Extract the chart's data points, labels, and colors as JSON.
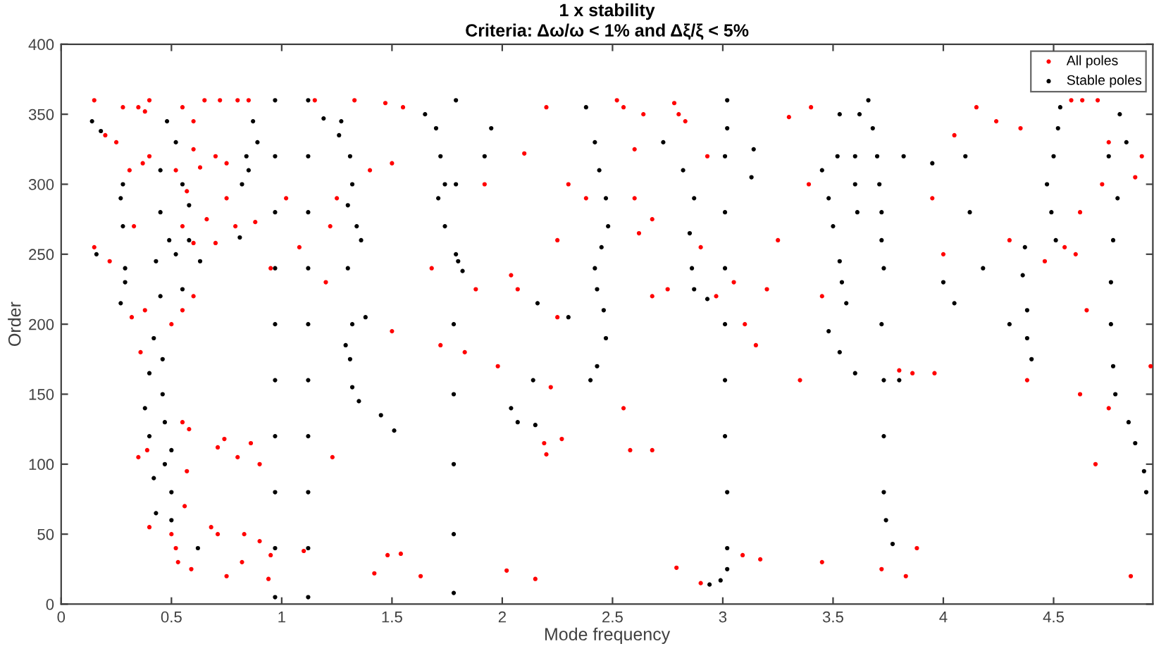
{
  "chart_data": {
    "type": "scatter",
    "title": "1 x stability",
    "subtitle": "Criteria: Δω/ω < 1% and Δξ/ξ < 5%",
    "xlabel": "Mode frequency",
    "ylabel": "Order",
    "xlim": [
      0,
      4.95
    ],
    "ylim": [
      0,
      400
    ],
    "xticks": [
      0,
      0.5,
      1,
      1.5,
      2,
      2.5,
      3,
      3.5,
      4,
      4.5
    ],
    "yticks": [
      0,
      50,
      100,
      150,
      200,
      250,
      300,
      350,
      400
    ],
    "grid": false,
    "legend": "top right",
    "marker": "circle",
    "series": [
      {
        "name": "All poles",
        "color": "#ff0000",
        "x": [
          0.15,
          0.2,
          0.25,
          0.28,
          0.35,
          0.38,
          0.4,
          0.55,
          0.6,
          0.65,
          0.72,
          0.8,
          0.85,
          0.6,
          0.7,
          0.63,
          0.75,
          0.37,
          0.31,
          0.4,
          0.52,
          0.57,
          0.66,
          0.75,
          0.79,
          0.88,
          0.7,
          0.6,
          0.55,
          0.33,
          0.22,
          0.15,
          0.32,
          0.38,
          0.55,
          0.6,
          0.5,
          0.36,
          0.39,
          0.35,
          0.55,
          0.58,
          0.57,
          0.56,
          0.4,
          0.5,
          0.52,
          0.53,
          0.59,
          0.68,
          0.71,
          0.75,
          0.82,
          0.86,
          0.8,
          0.74,
          0.71,
          0.9,
          0.83,
          0.9,
          0.95,
          0.94,
          0.95,
          1.02,
          1.1,
          1.08,
          1.23,
          1.42,
          1.48,
          1.54,
          1.63,
          1.5,
          1.2,
          1.22,
          1.25,
          1.4,
          1.5,
          1.55,
          1.33,
          1.47,
          1.15,
          1.68,
          1.72,
          1.83,
          1.88,
          1.92,
          1.98,
          2.04,
          2.07,
          2.02,
          2.15,
          2.25,
          2.3,
          2.38,
          2.25,
          2.22,
          2.27,
          2.19,
          2.2,
          2.1,
          2.2,
          2.6,
          2.52,
          2.55,
          2.6,
          2.68,
          2.62,
          2.64,
          2.78,
          2.8,
          2.83,
          2.75,
          2.68,
          2.55,
          2.58,
          2.68,
          2.79,
          2.9,
          2.93,
          2.9,
          2.97,
          3.05,
          3.1,
          3.09,
          3.17,
          3.15,
          3.2,
          3.25,
          3.3,
          3.4,
          3.39,
          3.35,
          3.45,
          3.45,
          3.72,
          3.83,
          3.88,
          3.8,
          3.86,
          3.96,
          3.95,
          4.0,
          4.05,
          4.15,
          4.24,
          4.35,
          4.3,
          4.38,
          4.46,
          4.55,
          4.62,
          4.7,
          4.72,
          4.6,
          4.75,
          4.65,
          4.62,
          4.75,
          4.69,
          4.85,
          4.9,
          4.87,
          4.94,
          4.58,
          4.63
        ],
        "values": [
          360,
          335,
          330,
          355,
          355,
          352,
          360,
          355,
          345,
          360,
          360,
          360,
          360,
          325,
          320,
          312,
          315,
          315,
          310,
          320,
          310,
          295,
          275,
          290,
          270,
          273,
          258,
          258,
          270,
          270,
          245,
          255,
          205,
          210,
          210,
          220,
          200,
          180,
          110,
          105,
          130,
          125,
          95,
          70,
          55,
          50,
          40,
          30,
          25,
          55,
          50,
          20,
          30,
          115,
          105,
          118,
          112,
          100,
          50,
          45,
          35,
          18,
          240,
          290,
          38,
          255,
          105,
          22,
          35,
          36,
          20,
          195,
          230,
          270,
          290,
          310,
          315,
          355,
          360,
          358,
          360,
          240,
          185,
          180,
          225,
          300,
          170,
          235,
          225,
          24,
          18,
          260,
          300,
          290,
          205,
          155,
          118,
          115,
          107,
          322,
          355,
          325,
          360,
          355,
          290,
          275,
          265,
          350,
          358,
          350,
          345,
          225,
          220,
          140,
          110,
          110,
          26,
          15,
          320,
          255,
          220,
          230,
          200,
          35,
          32,
          185,
          225,
          260,
          348,
          355,
          300,
          160,
          220,
          30,
          25,
          20,
          40,
          167,
          165,
          165,
          290,
          250,
          335,
          355,
          345,
          340,
          260,
          160,
          245,
          255,
          280,
          360,
          300,
          250,
          330,
          210,
          150,
          140,
          100,
          20,
          320,
          305,
          170,
          360,
          360
        ]
      },
      {
        "name": "Stable poles",
        "color": "#000000",
        "x": [
          0.97,
          0.97,
          0.97,
          0.97,
          0.97,
          0.97,
          0.97,
          0.97,
          0.97,
          0.97,
          1.12,
          1.12,
          1.12,
          1.12,
          1.12,
          1.12,
          1.12,
          1.12,
          1.12,
          1.12,
          1.78,
          1.78,
          1.78,
          1.78,
          1.78,
          1.79,
          1.79,
          1.79,
          2.94,
          2.99,
          3.02,
          3.02,
          3.02,
          3.01,
          3.01,
          3.01,
          3.01,
          3.01,
          3.01,
          3.02,
          3.02,
          3.77,
          3.74,
          3.73,
          3.73,
          3.73,
          3.72,
          3.73,
          3.72,
          3.72,
          3.71,
          3.7,
          3.68,
          3.66,
          3.62,
          3.6,
          3.6,
          3.61,
          0.43,
          0.42,
          0.4,
          0.38,
          0.4,
          0.42,
          0.45,
          0.43,
          0.45,
          0.45,
          0.48,
          0.5,
          0.47,
          0.47,
          0.46,
          0.46,
          0.5,
          0.5,
          0.49,
          0.52,
          0.55,
          0.27,
          0.29,
          0.29,
          0.27,
          0.28,
          0.28,
          0.16,
          0.14,
          0.18,
          0.62,
          0.63,
          0.58,
          0.58,
          0.55,
          0.52,
          0.87,
          0.89,
          0.84,
          0.82,
          0.81,
          0.85,
          1.31,
          1.32,
          1.35,
          1.29,
          1.32,
          1.38,
          1.36,
          1.34,
          1.3,
          1.32,
          1.31,
          1.27,
          1.19,
          1.45,
          1.51,
          1.26,
          1.3,
          1.65,
          1.72,
          1.74,
          1.71,
          1.74,
          1.7,
          1.8,
          1.82,
          1.95,
          1.92,
          2.04,
          2.07,
          2.15,
          2.16,
          2.14,
          2.3,
          2.42,
          2.44,
          2.47,
          2.48,
          2.45,
          2.42,
          2.43,
          2.46,
          2.47,
          2.43,
          2.4,
          2.38,
          2.73,
          2.82,
          2.87,
          2.85,
          2.86,
          2.87,
          2.93,
          3.45,
          3.48,
          3.5,
          3.53,
          3.54,
          3.56,
          3.48,
          3.53,
          3.6,
          3.53,
          3.52,
          3.14,
          3.13,
          4.1,
          4.12,
          4.18,
          4.0,
          4.05,
          4.3,
          4.38,
          4.4,
          4.36,
          4.38,
          3.82,
          3.8,
          3.95,
          4.37,
          4.47,
          4.49,
          4.51,
          4.5,
          4.52,
          4.53,
          4.92,
          4.91,
          4.87,
          4.84,
          4.78,
          4.77,
          4.76,
          4.76,
          4.77,
          4.79,
          4.83,
          4.8,
          4.75
        ],
        "values": [
          5,
          40,
          80,
          120,
          160,
          200,
          240,
          280,
          320,
          360,
          5,
          40,
          80,
          120,
          160,
          200,
          240,
          280,
          320,
          360,
          8,
          50,
          100,
          150,
          200,
          250,
          300,
          360,
          14,
          17,
          25,
          40,
          80,
          120,
          160,
          200,
          240,
          280,
          320,
          340,
          360,
          43,
          60,
          80,
          120,
          160,
          200,
          240,
          260,
          280,
          300,
          320,
          340,
          360,
          350,
          320,
          300,
          280,
          65,
          90,
          120,
          140,
          165,
          190,
          220,
          245,
          280,
          310,
          345,
          60,
          100,
          130,
          150,
          175,
          80,
          110,
          260,
          250,
          300,
          215,
          230,
          240,
          290,
          300,
          270,
          250,
          345,
          338,
          40,
          245,
          260,
          285,
          225,
          330,
          345,
          330,
          320,
          300,
          262,
          310,
          175,
          155,
          145,
          185,
          200,
          205,
          260,
          270,
          285,
          300,
          320,
          345,
          347,
          135,
          124,
          335,
          240,
          350,
          320,
          300,
          290,
          270,
          340,
          245,
          238,
          340,
          320,
          140,
          130,
          128,
          215,
          160,
          205,
          330,
          310,
          290,
          270,
          255,
          240,
          225,
          210,
          190,
          170,
          160,
          355,
          330,
          310,
          290,
          265,
          240,
          225,
          218,
          310,
          290,
          270,
          245,
          230,
          215,
          195,
          180,
          165,
          350,
          320,
          325,
          305,
          320,
          280,
          240,
          230,
          215,
          200,
          190,
          175,
          235,
          210,
          320,
          160,
          315,
          255,
          300,
          280,
          260,
          320,
          340,
          355,
          80,
          95,
          115,
          130,
          150,
          170,
          200,
          230,
          260,
          290,
          330,
          350,
          320
        ]
      }
    ]
  }
}
